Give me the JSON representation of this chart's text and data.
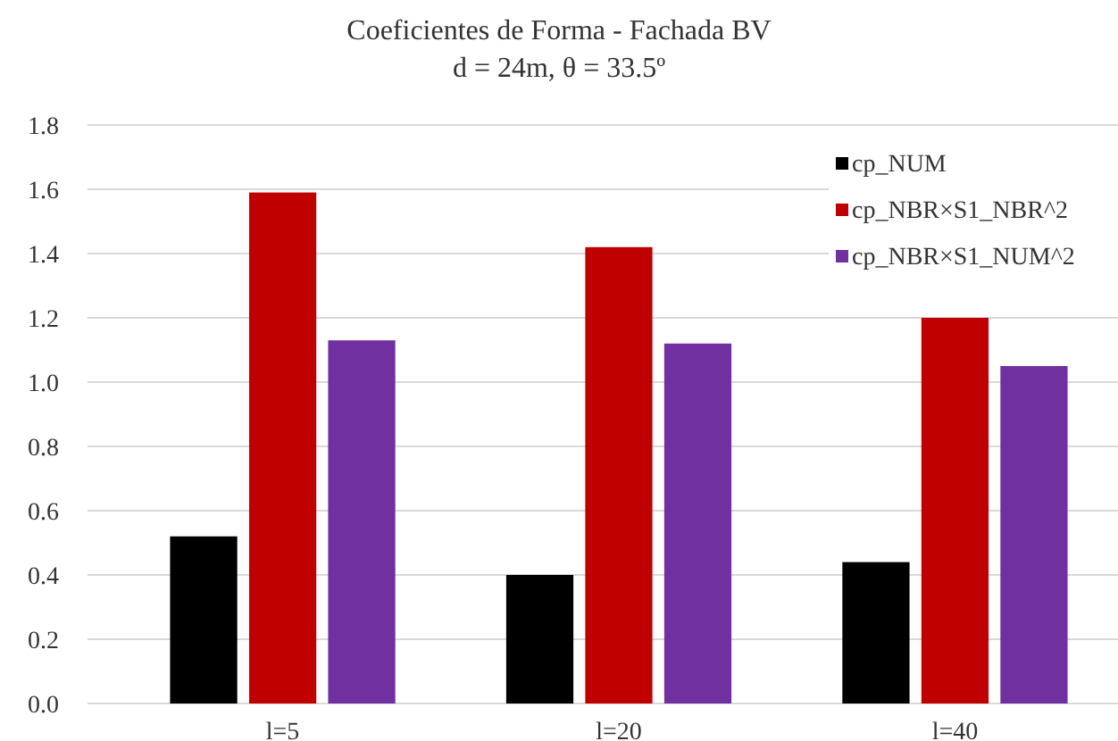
{
  "chart_data": {
    "type": "bar",
    "title": "Coeficientes de Forma - Fachada BV",
    "subtitle": "d = 24m, θ = 33.5º",
    "categories": [
      "l=5",
      "l=20",
      "l=40"
    ],
    "series": [
      {
        "name": "cp_NUM",
        "color": "#000000",
        "values": [
          0.52,
          0.4,
          0.44
        ]
      },
      {
        "name": "cp_NBR×S1_NBR^2",
        "color": "#c00000",
        "values": [
          1.59,
          1.42,
          1.2
        ]
      },
      {
        "name": "cp_NBR×S1_NUM^2",
        "color": "#7030a0",
        "values": [
          1.13,
          1.12,
          1.05
        ]
      }
    ],
    "ylim": [
      0,
      1.8
    ],
    "yticks": [
      {
        "value": 0,
        "label": "0.0"
      },
      0.2,
      0.4,
      0.6,
      0.8,
      {
        "value": 1,
        "label": "1.0"
      },
      1.2,
      1.4,
      1.6,
      1.8
    ],
    "grid": "y",
    "legend": "top right"
  }
}
